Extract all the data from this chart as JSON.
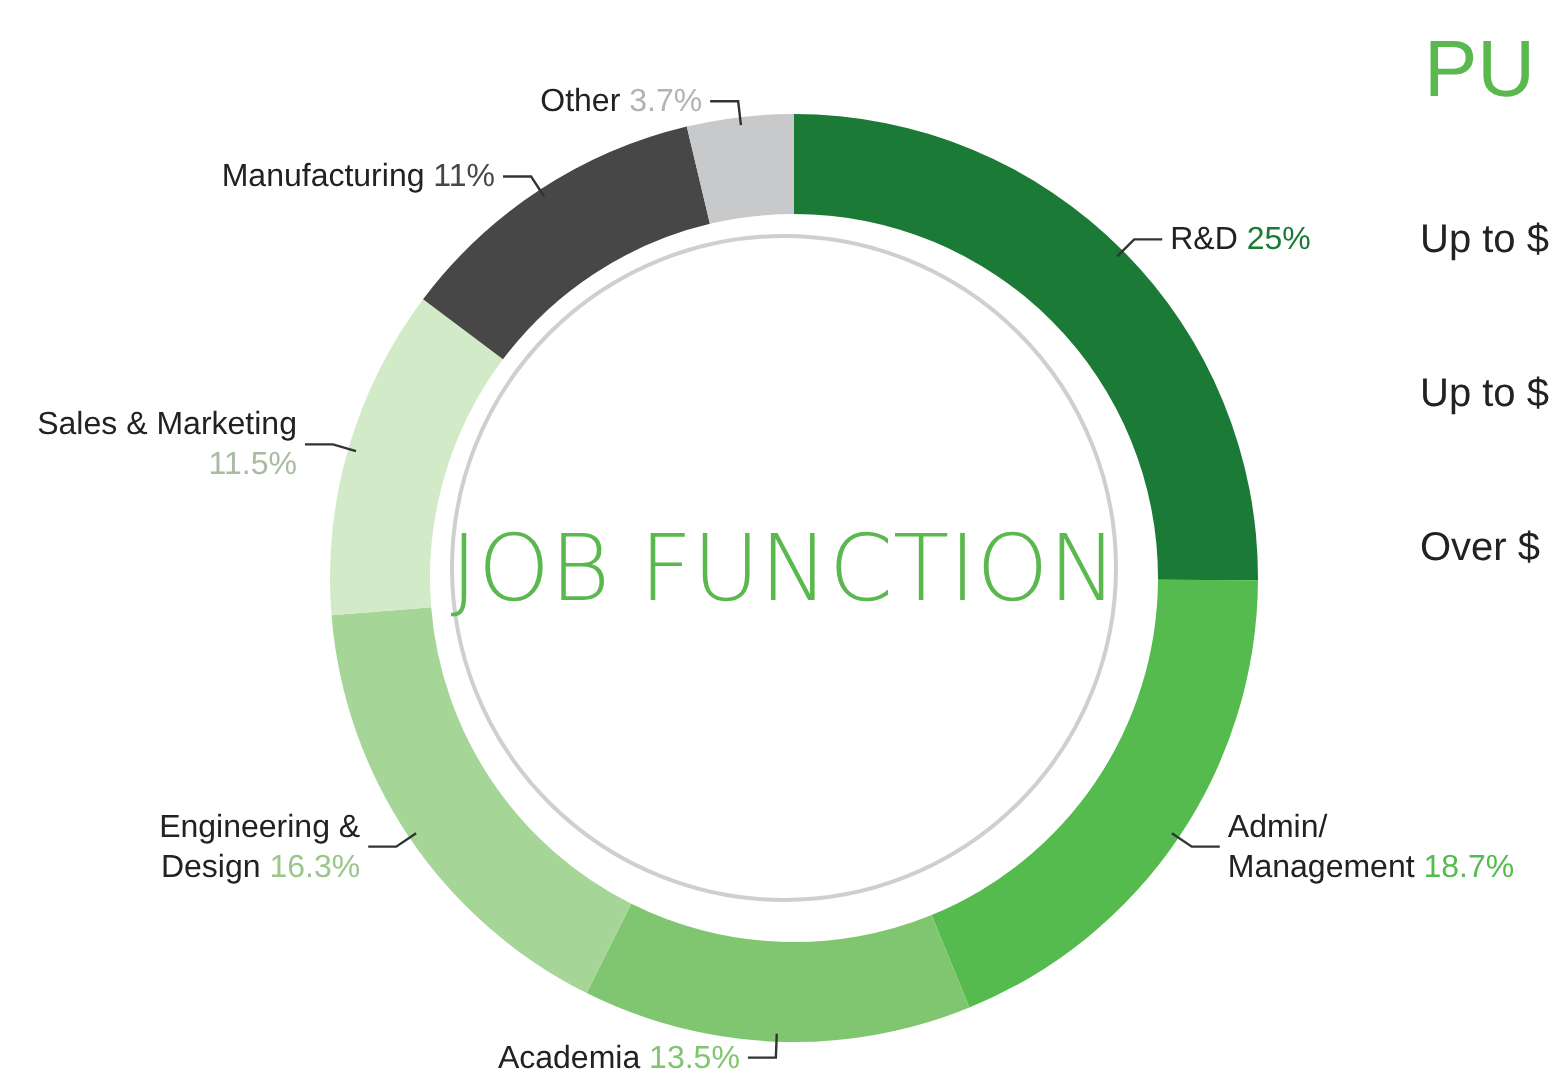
{
  "chart_data": {
    "type": "donut",
    "title": "JOB FUNCTION",
    "categories": [
      "R&D",
      "Admin/ Management",
      "Academia",
      "Engineering & Design",
      "Sales & Marketing",
      "Manufacturing",
      "Other"
    ],
    "values": [
      25,
      18.7,
      13.5,
      16.3,
      11.5,
      11,
      3.7
    ],
    "colors": [
      "#1b7a35",
      "#56bb4f",
      "#80c670",
      "#a6d697",
      "#d3eac9",
      "#474747",
      "#c8c9cb"
    ],
    "value_labels": [
      "25%",
      "18.7%",
      "13.5%",
      "16.3%",
      "11.5%",
      "11%",
      "3.7%"
    ],
    "annotations": [
      "PU",
      "Up to $",
      "Up to $",
      "Over $"
    ]
  }
}
